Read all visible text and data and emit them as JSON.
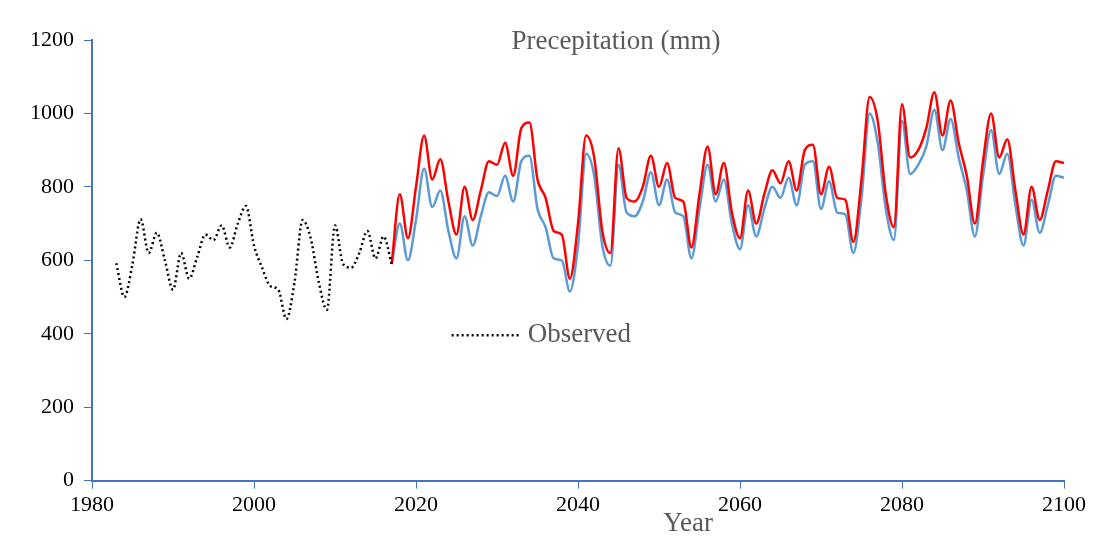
{
  "chart_data": {
    "type": "line",
    "title": "Precepitation (mm)",
    "xlabel": "Year",
    "xlim": [
      1980,
      2100
    ],
    "xticks": [
      1980,
      2000,
      2020,
      2040,
      2060,
      2080,
      2100
    ],
    "ylim": [
      0,
      1200
    ],
    "yticks": [
      0,
      200,
      400,
      600,
      800,
      1000,
      1200
    ],
    "grid": false,
    "legend": "left",
    "marker": "none",
    "series": [
      {
        "name": "Observed",
        "color": "#000000",
        "line_style": "dotted",
        "x": [
          1983,
          1984,
          1985,
          1986,
          1987,
          1988,
          1989,
          1990,
          1991,
          1992,
          1993,
          1994,
          1995,
          1996,
          1997,
          1998,
          1999,
          2000,
          2001,
          2002,
          2003,
          2004,
          2005,
          2006,
          2007,
          2008,
          2009,
          2010,
          2011,
          2012,
          2013,
          2014,
          2015,
          2016,
          2017
        ],
        "values": [
          592,
          500,
          590,
          712,
          620,
          675,
          600,
          520,
          620,
          550,
          610,
          670,
          655,
          695,
          635,
          700,
          748,
          640,
          580,
          530,
          520,
          440,
          540,
          710,
          660,
          540,
          465,
          695,
          590,
          580,
          620,
          680,
          605,
          665,
          590
        ]
      },
      {
        "color": "#ff0000",
        "line_style": "solid",
        "x": [
          2017,
          2018,
          2019,
          2020,
          2021,
          2022,
          2023,
          2024,
          2025,
          2026,
          2027,
          2028,
          2029,
          2030,
          2031,
          2032,
          2033,
          2034,
          2035,
          2036,
          2037,
          2038,
          2039,
          2040,
          2041,
          2042,
          2043,
          2044,
          2045,
          2046,
          2047,
          2048,
          2049,
          2050,
          2051,
          2052,
          2053,
          2054,
          2055,
          2056,
          2057,
          2058,
          2059,
          2060,
          2061,
          2062,
          2063,
          2064,
          2065,
          2066,
          2067,
          2068,
          2069,
          2070,
          2071,
          2072,
          2073,
          2074,
          2075,
          2076,
          2077,
          2078,
          2079,
          2080,
          2081,
          2082,
          2083,
          2084,
          2085,
          2086,
          2087,
          2088,
          2089,
          2090,
          2091,
          2092,
          2093,
          2094,
          2095,
          2096,
          2097,
          2098,
          2099,
          2100
        ],
        "values": [
          590,
          780,
          660,
          800,
          940,
          820,
          875,
          760,
          670,
          800,
          710,
          790,
          870,
          860,
          920,
          830,
          960,
          975,
          820,
          770,
          680,
          670,
          550,
          700,
          940,
          880,
          680,
          620,
          905,
          770,
          760,
          800,
          885,
          800,
          865,
          770,
          760,
          635,
          780,
          910,
          780,
          865,
          730,
          660,
          790,
          700,
          780,
          845,
          810,
          870,
          790,
          900,
          915,
          780,
          855,
          770,
          765,
          650,
          820,
          1045,
          980,
          780,
          690,
          1025,
          880,
          900,
          960,
          1058,
          940,
          1035,
          920,
          830,
          700,
          870,
          1000,
          880,
          930,
          790,
          670,
          800,
          710,
          790,
          870,
          865
        ]
      },
      {
        "color": "#5b9bd5",
        "line_style": "solid",
        "x": [
          2017,
          2018,
          2019,
          2020,
          2021,
          2022,
          2023,
          2024,
          2025,
          2026,
          2027,
          2028,
          2029,
          2030,
          2031,
          2032,
          2033,
          2034,
          2035,
          2036,
          2037,
          2038,
          2039,
          2040,
          2041,
          2042,
          2043,
          2044,
          2045,
          2046,
          2047,
          2048,
          2049,
          2050,
          2051,
          2052,
          2053,
          2054,
          2055,
          2056,
          2057,
          2058,
          2059,
          2060,
          2061,
          2062,
          2063,
          2064,
          2065,
          2066,
          2067,
          2068,
          2069,
          2070,
          2071,
          2072,
          2073,
          2074,
          2075,
          2076,
          2077,
          2078,
          2079,
          2080,
          2081,
          2082,
          2083,
          2084,
          2085,
          2086,
          2087,
          2088,
          2089,
          2090,
          2091,
          2092,
          2093,
          2094,
          2095,
          2096,
          2097,
          2098,
          2099,
          2100
        ],
        "values": [
          590,
          700,
          600,
          710,
          850,
          745,
          790,
          680,
          605,
          720,
          640,
          720,
          785,
          775,
          830,
          760,
          870,
          885,
          740,
          690,
          605,
          600,
          515,
          640,
          890,
          830,
          640,
          585,
          860,
          730,
          720,
          760,
          840,
          750,
          820,
          730,
          720,
          605,
          740,
          860,
          760,
          820,
          700,
          630,
          750,
          665,
          740,
          800,
          770,
          825,
          750,
          860,
          870,
          740,
          815,
          730,
          725,
          620,
          770,
          1000,
          920,
          740,
          655,
          980,
          835,
          860,
          910,
          1010,
          900,
          985,
          880,
          790,
          665,
          830,
          955,
          835,
          890,
          750,
          640,
          765,
          675,
          750,
          830,
          825
        ]
      }
    ]
  }
}
